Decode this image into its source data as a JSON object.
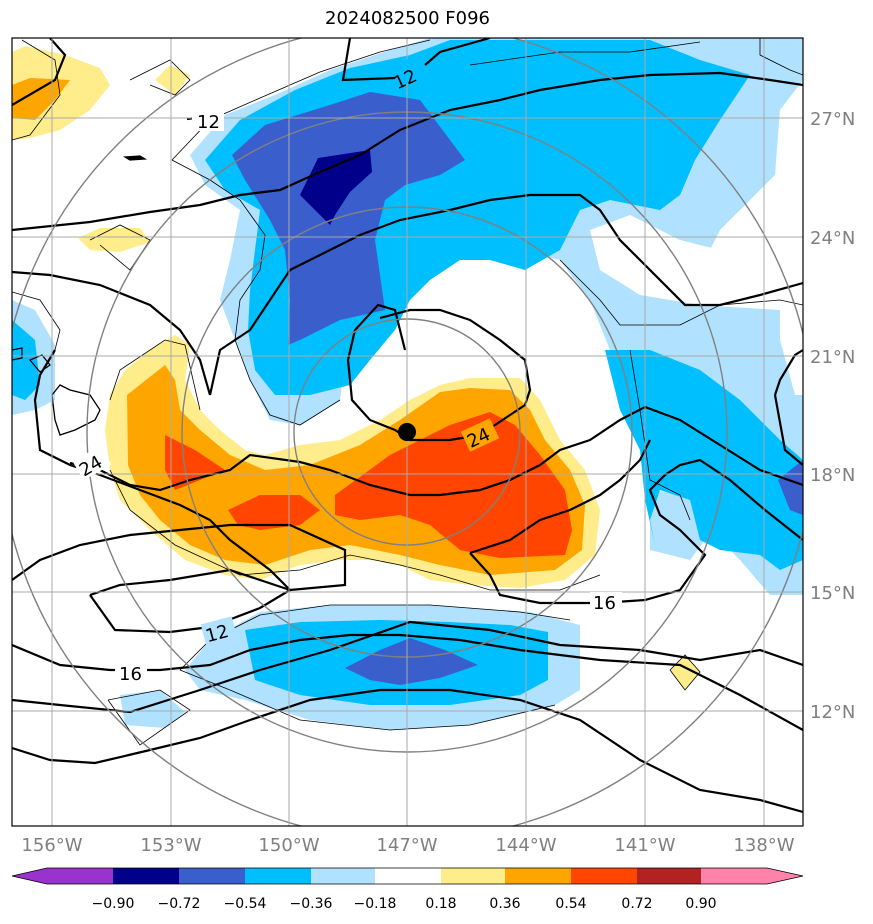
{
  "title": "2024082500 F096",
  "lon_labels": [
    "156°W",
    "153°W",
    "150°W",
    "147°W",
    "144°W",
    "141°W",
    "138°W"
  ],
  "lat_labels": [
    "27°N",
    "24°N",
    "21°N",
    "18°N",
    "15°N",
    "12°N"
  ],
  "contour_labels": [
    "12",
    "12",
    "12",
    "16",
    "16",
    "24",
    "24"
  ],
  "colorbar": {
    "ticks": [
      "−0.90",
      "−0.72",
      "−0.54",
      "−0.36",
      "−0.18",
      "0.18",
      "0.36",
      "0.54",
      "0.72",
      "0.90"
    ],
    "colors": [
      "#9a32cd",
      "#00008b",
      "#3a5fcd",
      "#00bfff",
      "#b0e2ff",
      "#ffffff",
      "#ffec8b",
      "#ffa500",
      "#ff4500",
      "#b22222",
      "#ff82ab"
    ]
  },
  "fill_colors": {
    "dark_navy": "#00008b",
    "royal_blue": "#3a5fcd",
    "deep_sky": "#00bfff",
    "light_sky": "#b0e2ff",
    "light_yellow": "#ffec8b",
    "orange": "#ffa500",
    "orange_red": "#ff4500"
  }
}
